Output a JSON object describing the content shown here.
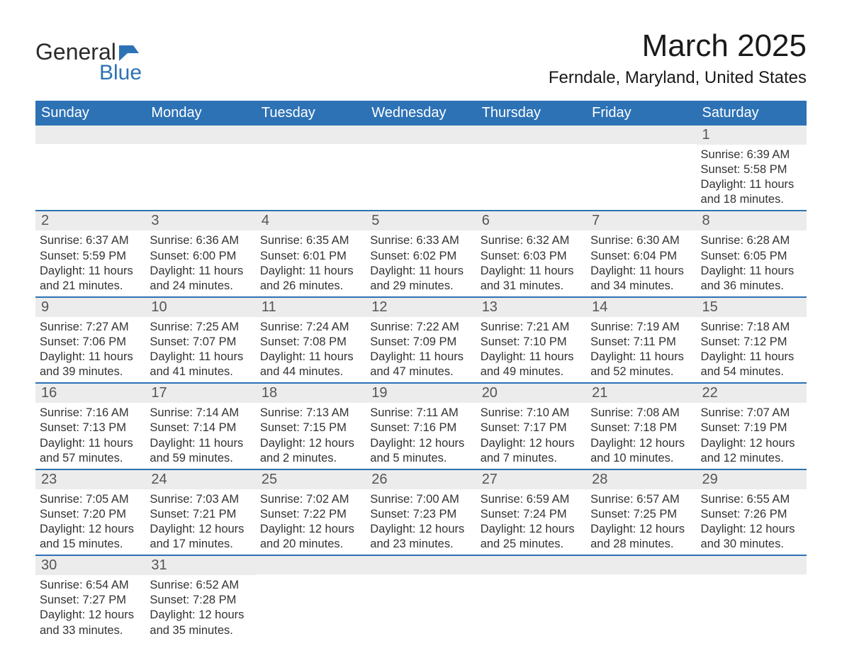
{
  "brand": {
    "word1": "General",
    "word2": "Blue"
  },
  "title": "March 2025",
  "location": "Ferndale, Maryland, United States",
  "colors": {
    "header_bg": "#2d72b5",
    "header_text": "#ffffff",
    "daynum_bg": "#ececec",
    "daynum_text": "#555555",
    "row_border": "#2d72b5",
    "body_text": "#333333",
    "page_bg": "#ffffff",
    "logo_gray": "#2b2b2b",
    "logo_blue": "#2d72b5"
  },
  "fonts": {
    "title_size_pt": 33,
    "location_size_pt": 18,
    "dow_size_pt": 15,
    "daynum_size_pt": 15,
    "body_size_pt": 12
  },
  "days_of_week": [
    "Sunday",
    "Monday",
    "Tuesday",
    "Wednesday",
    "Thursday",
    "Friday",
    "Saturday"
  ],
  "weeks": [
    [
      {
        "empty": true
      },
      {
        "empty": true
      },
      {
        "empty": true
      },
      {
        "empty": true
      },
      {
        "empty": true
      },
      {
        "empty": true
      },
      {
        "n": "1",
        "sunrise": "Sunrise: 6:39 AM",
        "sunset": "Sunset: 5:58 PM",
        "dl1": "Daylight: 11 hours",
        "dl2": "and 18 minutes."
      }
    ],
    [
      {
        "n": "2",
        "sunrise": "Sunrise: 6:37 AM",
        "sunset": "Sunset: 5:59 PM",
        "dl1": "Daylight: 11 hours",
        "dl2": "and 21 minutes."
      },
      {
        "n": "3",
        "sunrise": "Sunrise: 6:36 AM",
        "sunset": "Sunset: 6:00 PM",
        "dl1": "Daylight: 11 hours",
        "dl2": "and 24 minutes."
      },
      {
        "n": "4",
        "sunrise": "Sunrise: 6:35 AM",
        "sunset": "Sunset: 6:01 PM",
        "dl1": "Daylight: 11 hours",
        "dl2": "and 26 minutes."
      },
      {
        "n": "5",
        "sunrise": "Sunrise: 6:33 AM",
        "sunset": "Sunset: 6:02 PM",
        "dl1": "Daylight: 11 hours",
        "dl2": "and 29 minutes."
      },
      {
        "n": "6",
        "sunrise": "Sunrise: 6:32 AM",
        "sunset": "Sunset: 6:03 PM",
        "dl1": "Daylight: 11 hours",
        "dl2": "and 31 minutes."
      },
      {
        "n": "7",
        "sunrise": "Sunrise: 6:30 AM",
        "sunset": "Sunset: 6:04 PM",
        "dl1": "Daylight: 11 hours",
        "dl2": "and 34 minutes."
      },
      {
        "n": "8",
        "sunrise": "Sunrise: 6:28 AM",
        "sunset": "Sunset: 6:05 PM",
        "dl1": "Daylight: 11 hours",
        "dl2": "and 36 minutes."
      }
    ],
    [
      {
        "n": "9",
        "sunrise": "Sunrise: 7:27 AM",
        "sunset": "Sunset: 7:06 PM",
        "dl1": "Daylight: 11 hours",
        "dl2": "and 39 minutes."
      },
      {
        "n": "10",
        "sunrise": "Sunrise: 7:25 AM",
        "sunset": "Sunset: 7:07 PM",
        "dl1": "Daylight: 11 hours",
        "dl2": "and 41 minutes."
      },
      {
        "n": "11",
        "sunrise": "Sunrise: 7:24 AM",
        "sunset": "Sunset: 7:08 PM",
        "dl1": "Daylight: 11 hours",
        "dl2": "and 44 minutes."
      },
      {
        "n": "12",
        "sunrise": "Sunrise: 7:22 AM",
        "sunset": "Sunset: 7:09 PM",
        "dl1": "Daylight: 11 hours",
        "dl2": "and 47 minutes."
      },
      {
        "n": "13",
        "sunrise": "Sunrise: 7:21 AM",
        "sunset": "Sunset: 7:10 PM",
        "dl1": "Daylight: 11 hours",
        "dl2": "and 49 minutes."
      },
      {
        "n": "14",
        "sunrise": "Sunrise: 7:19 AM",
        "sunset": "Sunset: 7:11 PM",
        "dl1": "Daylight: 11 hours",
        "dl2": "and 52 minutes."
      },
      {
        "n": "15",
        "sunrise": "Sunrise: 7:18 AM",
        "sunset": "Sunset: 7:12 PM",
        "dl1": "Daylight: 11 hours",
        "dl2": "and 54 minutes."
      }
    ],
    [
      {
        "n": "16",
        "sunrise": "Sunrise: 7:16 AM",
        "sunset": "Sunset: 7:13 PM",
        "dl1": "Daylight: 11 hours",
        "dl2": "and 57 minutes."
      },
      {
        "n": "17",
        "sunrise": "Sunrise: 7:14 AM",
        "sunset": "Sunset: 7:14 PM",
        "dl1": "Daylight: 11 hours",
        "dl2": "and 59 minutes."
      },
      {
        "n": "18",
        "sunrise": "Sunrise: 7:13 AM",
        "sunset": "Sunset: 7:15 PM",
        "dl1": "Daylight: 12 hours",
        "dl2": "and 2 minutes."
      },
      {
        "n": "19",
        "sunrise": "Sunrise: 7:11 AM",
        "sunset": "Sunset: 7:16 PM",
        "dl1": "Daylight: 12 hours",
        "dl2": "and 5 minutes."
      },
      {
        "n": "20",
        "sunrise": "Sunrise: 7:10 AM",
        "sunset": "Sunset: 7:17 PM",
        "dl1": "Daylight: 12 hours",
        "dl2": "and 7 minutes."
      },
      {
        "n": "21",
        "sunrise": "Sunrise: 7:08 AM",
        "sunset": "Sunset: 7:18 PM",
        "dl1": "Daylight: 12 hours",
        "dl2": "and 10 minutes."
      },
      {
        "n": "22",
        "sunrise": "Sunrise: 7:07 AM",
        "sunset": "Sunset: 7:19 PM",
        "dl1": "Daylight: 12 hours",
        "dl2": "and 12 minutes."
      }
    ],
    [
      {
        "n": "23",
        "sunrise": "Sunrise: 7:05 AM",
        "sunset": "Sunset: 7:20 PM",
        "dl1": "Daylight: 12 hours",
        "dl2": "and 15 minutes."
      },
      {
        "n": "24",
        "sunrise": "Sunrise: 7:03 AM",
        "sunset": "Sunset: 7:21 PM",
        "dl1": "Daylight: 12 hours",
        "dl2": "and 17 minutes."
      },
      {
        "n": "25",
        "sunrise": "Sunrise: 7:02 AM",
        "sunset": "Sunset: 7:22 PM",
        "dl1": "Daylight: 12 hours",
        "dl2": "and 20 minutes."
      },
      {
        "n": "26",
        "sunrise": "Sunrise: 7:00 AM",
        "sunset": "Sunset: 7:23 PM",
        "dl1": "Daylight: 12 hours",
        "dl2": "and 23 minutes."
      },
      {
        "n": "27",
        "sunrise": "Sunrise: 6:59 AM",
        "sunset": "Sunset: 7:24 PM",
        "dl1": "Daylight: 12 hours",
        "dl2": "and 25 minutes."
      },
      {
        "n": "28",
        "sunrise": "Sunrise: 6:57 AM",
        "sunset": "Sunset: 7:25 PM",
        "dl1": "Daylight: 12 hours",
        "dl2": "and 28 minutes."
      },
      {
        "n": "29",
        "sunrise": "Sunrise: 6:55 AM",
        "sunset": "Sunset: 7:26 PM",
        "dl1": "Daylight: 12 hours",
        "dl2": "and 30 minutes."
      }
    ],
    [
      {
        "n": "30",
        "sunrise": "Sunrise: 6:54 AM",
        "sunset": "Sunset: 7:27 PM",
        "dl1": "Daylight: 12 hours",
        "dl2": "and 33 minutes."
      },
      {
        "n": "31",
        "sunrise": "Sunrise: 6:52 AM",
        "sunset": "Sunset: 7:28 PM",
        "dl1": "Daylight: 12 hours",
        "dl2": "and 35 minutes."
      },
      {
        "empty": true
      },
      {
        "empty": true
      },
      {
        "empty": true
      },
      {
        "empty": true
      },
      {
        "empty": true
      }
    ]
  ]
}
